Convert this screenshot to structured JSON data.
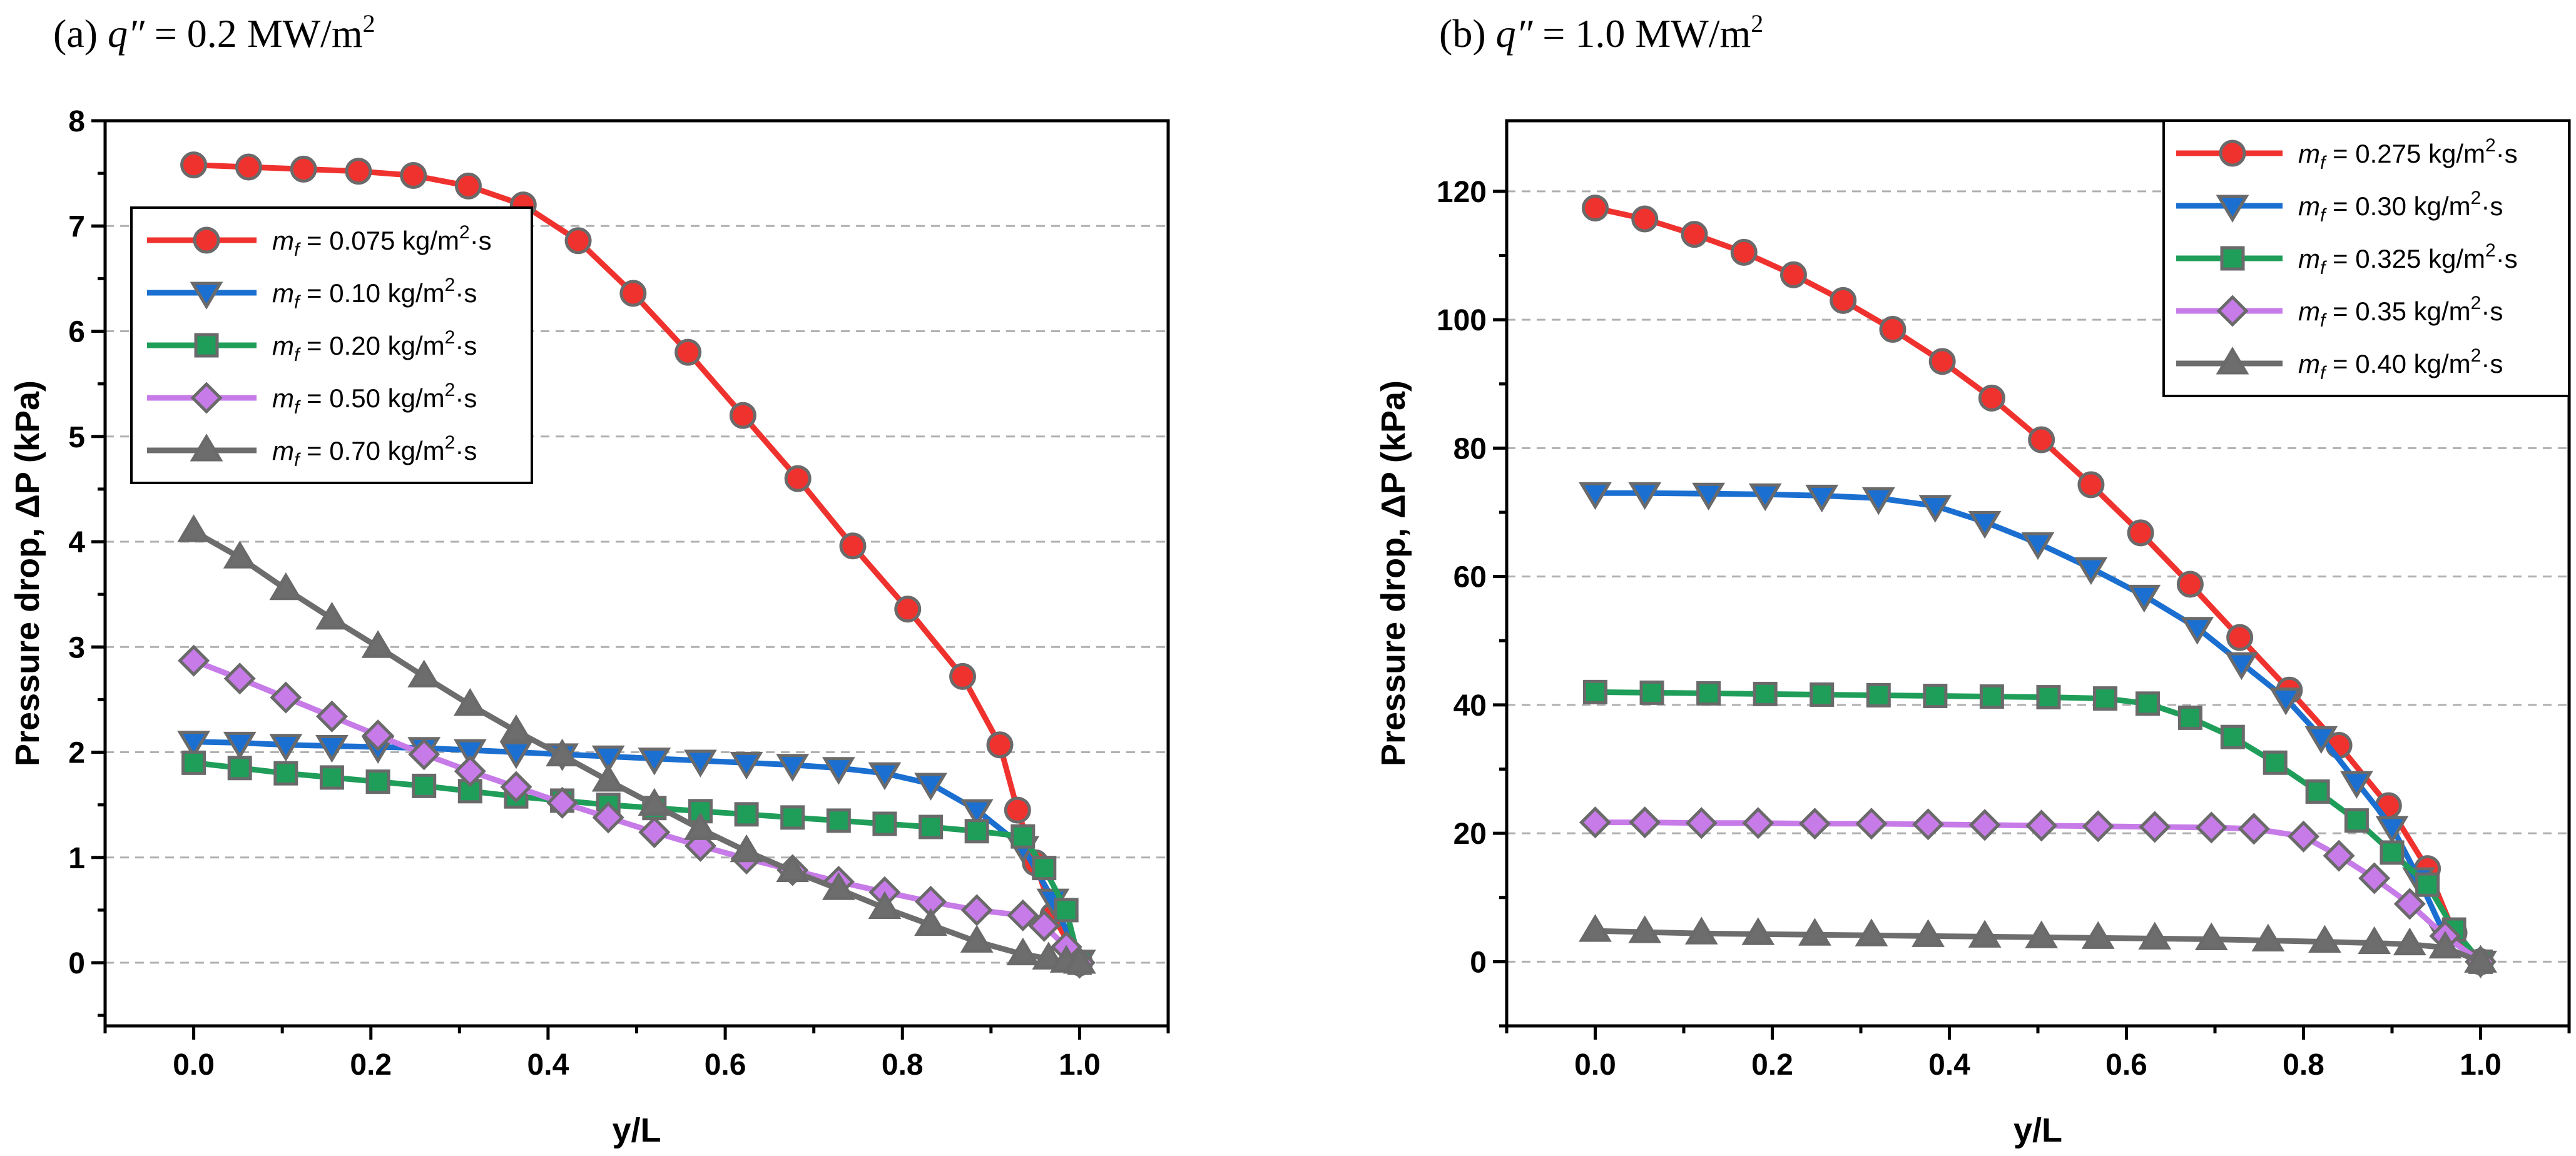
{
  "chart_data": [
    {
      "type": "line",
      "panel_label": "(a)",
      "title_rest": " = 0.2 MW/m",
      "title_var": "q″",
      "title_sup": "2",
      "xlabel": "y/L",
      "ylabel": "Pressure drop, ΔP (kPa)",
      "xlim": [
        -0.1,
        1.1
      ],
      "ylim": [
        -0.6,
        8
      ],
      "xticks": [
        0.0,
        0.2,
        0.4,
        0.6,
        0.8,
        1.0
      ],
      "yticks": [
        0,
        1,
        2,
        3,
        4,
        5,
        6,
        7,
        8
      ],
      "ytick_labels": [
        "0",
        "1",
        "2",
        "3",
        "4",
        "5",
        "6",
        "7",
        "8"
      ],
      "gridlines_y": [
        0,
        1,
        2,
        3,
        4,
        5,
        6,
        7
      ],
      "legend_position": "top-left",
      "series": [
        {
          "label_sub": "f",
          "label_mid": " = 0.075 kg/m",
          "label_sup": "2",
          "label_end": "·s",
          "color": "#f0322f",
          "marker": "circle",
          "x": [
            0.0,
            0.062,
            0.124,
            0.186,
            0.248,
            0.31,
            0.372,
            0.434,
            0.496,
            0.558,
            0.62,
            0.682,
            0.744,
            0.806,
            0.868,
            0.91,
            0.93,
            0.95,
            0.97,
            1.0
          ],
          "y": [
            7.58,
            7.56,
            7.54,
            7.52,
            7.48,
            7.38,
            7.2,
            6.86,
            6.36,
            5.8,
            5.2,
            4.6,
            3.96,
            3.36,
            2.72,
            2.07,
            1.45,
            0.95,
            0.45,
            0.0
          ]
        },
        {
          "label_sub": "f",
          "label_mid": " = 0.10 kg/m",
          "label_sup": "2",
          "label_end": "·s",
          "color": "#1a6fd1",
          "marker": "triangle-down",
          "x": [
            0.0,
            0.052,
            0.104,
            0.156,
            0.208,
            0.26,
            0.312,
            0.364,
            0.416,
            0.468,
            0.52,
            0.572,
            0.624,
            0.676,
            0.728,
            0.78,
            0.832,
            0.884,
            0.936,
            0.97,
            1.0
          ],
          "y": [
            2.1,
            2.09,
            2.07,
            2.06,
            2.05,
            2.04,
            2.02,
            2.0,
            1.98,
            1.96,
            1.94,
            1.92,
            1.9,
            1.88,
            1.85,
            1.8,
            1.7,
            1.45,
            1.1,
            0.6,
            0.02
          ]
        },
        {
          "label_sub": "f",
          "label_mid": " = 0.20 kg/m",
          "label_sup": "2",
          "label_end": "·s",
          "color": "#1f9e5a",
          "marker": "square",
          "x": [
            0.0,
            0.052,
            0.104,
            0.156,
            0.208,
            0.26,
            0.312,
            0.364,
            0.416,
            0.468,
            0.52,
            0.572,
            0.624,
            0.676,
            0.728,
            0.78,
            0.832,
            0.884,
            0.936,
            0.96,
            0.985,
            1.0
          ],
          "y": [
            1.9,
            1.85,
            1.8,
            1.76,
            1.72,
            1.68,
            1.63,
            1.58,
            1.54,
            1.5,
            1.47,
            1.44,
            1.41,
            1.38,
            1.35,
            1.32,
            1.29,
            1.25,
            1.2,
            0.9,
            0.5,
            0.0
          ]
        },
        {
          "label_sub": "f",
          "label_mid": " = 0.50 kg/m",
          "label_sup": "2",
          "label_end": "·s",
          "color": "#c77be8",
          "marker": "diamond",
          "x": [
            0.0,
            0.052,
            0.104,
            0.156,
            0.208,
            0.26,
            0.312,
            0.364,
            0.416,
            0.468,
            0.52,
            0.572,
            0.624,
            0.676,
            0.728,
            0.78,
            0.832,
            0.884,
            0.936,
            0.96,
            0.985,
            1.0
          ],
          "y": [
            2.87,
            2.7,
            2.52,
            2.34,
            2.16,
            1.98,
            1.82,
            1.67,
            1.52,
            1.38,
            1.24,
            1.11,
            0.99,
            0.88,
            0.77,
            0.67,
            0.58,
            0.5,
            0.45,
            0.35,
            0.15,
            0.0
          ]
        },
        {
          "label_sub": "f",
          "label_mid": " = 0.70 kg/m",
          "label_sup": "2",
          "label_end": "·s",
          "color": "#6d6d6d",
          "marker": "triangle-up",
          "x": [
            0.0,
            0.052,
            0.104,
            0.156,
            0.208,
            0.26,
            0.312,
            0.364,
            0.416,
            0.468,
            0.52,
            0.572,
            0.624,
            0.676,
            0.728,
            0.78,
            0.832,
            0.884,
            0.936,
            0.965,
            0.985,
            1.0
          ],
          "y": [
            4.1,
            3.85,
            3.55,
            3.27,
            3.0,
            2.72,
            2.45,
            2.2,
            1.97,
            1.73,
            1.5,
            1.27,
            1.06,
            0.87,
            0.7,
            0.52,
            0.36,
            0.2,
            0.08,
            0.04,
            0.01,
            0.0
          ]
        }
      ]
    },
    {
      "type": "line",
      "panel_label": "(b)",
      "title_rest": " = 1.0 MW/m",
      "title_var": "q″",
      "title_sup": "2",
      "xlabel": "y/L",
      "ylabel": "Pressure drop, ΔP (kPa)",
      "xlim": [
        -0.1,
        1.1
      ],
      "ylim": [
        -10,
        131
      ],
      "xticks": [
        0.0,
        0.2,
        0.4,
        0.6,
        0.8,
        1.0
      ],
      "yticks": [
        0,
        20,
        40,
        60,
        80,
        100,
        120
      ],
      "ytick_labels": [
        "0",
        "20",
        "40",
        "60",
        "80",
        "100",
        "120"
      ],
      "gridlines_y": [
        0,
        20,
        40,
        60,
        80,
        100,
        120
      ],
      "legend_position": "top-right",
      "series": [
        {
          "label_sub": "f",
          "label_mid": " = 0.275 kg/m",
          "label_sup": "2",
          "label_end": "·s",
          "color": "#f0322f",
          "marker": "circle",
          "x": [
            0.0,
            0.056,
            0.112,
            0.168,
            0.224,
            0.28,
            0.336,
            0.392,
            0.448,
            0.504,
            0.56,
            0.616,
            0.672,
            0.728,
            0.784,
            0.84,
            0.896,
            0.94,
            0.97,
            1.0
          ],
          "y": [
            117.4,
            115.7,
            113.3,
            110.5,
            107.0,
            103.0,
            98.5,
            93.5,
            87.8,
            81.3,
            74.3,
            66.8,
            58.8,
            50.5,
            42.3,
            33.7,
            24.3,
            14.5,
            4.5,
            0.0
          ]
        },
        {
          "label_sub": "f",
          "label_mid": " = 0.30 kg/m",
          "label_sup": "2",
          "label_end": "·s",
          "color": "#1a6fd1",
          "marker": "triangle-down",
          "x": [
            0.0,
            0.056,
            0.128,
            0.192,
            0.256,
            0.32,
            0.384,
            0.44,
            0.5,
            0.56,
            0.62,
            0.68,
            0.73,
            0.78,
            0.82,
            0.86,
            0.9,
            0.93,
            0.96,
            1.0
          ],
          "y": [
            73.0,
            73.0,
            72.9,
            72.8,
            72.6,
            72.2,
            71.0,
            68.5,
            65.2,
            61.3,
            57.0,
            52.0,
            46.5,
            41.0,
            35.0,
            28.0,
            21.0,
            13.0,
            4.0,
            0.0
          ]
        },
        {
          "label_sub": "f",
          "label_mid": " = 0.325 kg/m",
          "label_sup": "2",
          "label_end": "·s",
          "color": "#1f9e5a",
          "marker": "square",
          "x": [
            0.0,
            0.064,
            0.128,
            0.192,
            0.256,
            0.32,
            0.384,
            0.448,
            0.512,
            0.576,
            0.624,
            0.672,
            0.72,
            0.768,
            0.816,
            0.86,
            0.9,
            0.94,
            0.97,
            1.0
          ],
          "y": [
            42.0,
            41.9,
            41.8,
            41.7,
            41.6,
            41.5,
            41.4,
            41.3,
            41.2,
            41.0,
            40.2,
            38.0,
            35.0,
            31.0,
            26.5,
            22.0,
            17.0,
            12.0,
            5.0,
            0.0
          ]
        },
        {
          "label_sub": "f",
          "label_mid": " = 0.35 kg/m",
          "label_sup": "2",
          "label_end": "·s",
          "color": "#c77be8",
          "marker": "diamond",
          "x": [
            0.0,
            0.056,
            0.12,
            0.184,
            0.248,
            0.312,
            0.376,
            0.44,
            0.504,
            0.568,
            0.632,
            0.696,
            0.744,
            0.8,
            0.84,
            0.88,
            0.92,
            0.96,
            1.0
          ],
          "y": [
            21.7,
            21.7,
            21.6,
            21.6,
            21.5,
            21.5,
            21.4,
            21.3,
            21.2,
            21.1,
            21.0,
            20.9,
            20.7,
            19.5,
            16.5,
            13.0,
            9.0,
            4.0,
            0.0
          ]
        },
        {
          "label_sub": "f",
          "label_mid": " = 0.40 kg/m",
          "label_sup": "2",
          "label_end": "·s",
          "color": "#6d6d6d",
          "marker": "triangle-up",
          "x": [
            0.0,
            0.056,
            0.12,
            0.184,
            0.248,
            0.312,
            0.376,
            0.44,
            0.504,
            0.568,
            0.632,
            0.696,
            0.76,
            0.824,
            0.88,
            0.92,
            0.96,
            1.0
          ],
          "y": [
            4.8,
            4.6,
            4.4,
            4.3,
            4.2,
            4.1,
            4.0,
            3.9,
            3.8,
            3.7,
            3.6,
            3.5,
            3.3,
            3.1,
            2.9,
            2.7,
            2.2,
            0.0
          ]
        }
      ]
    }
  ]
}
